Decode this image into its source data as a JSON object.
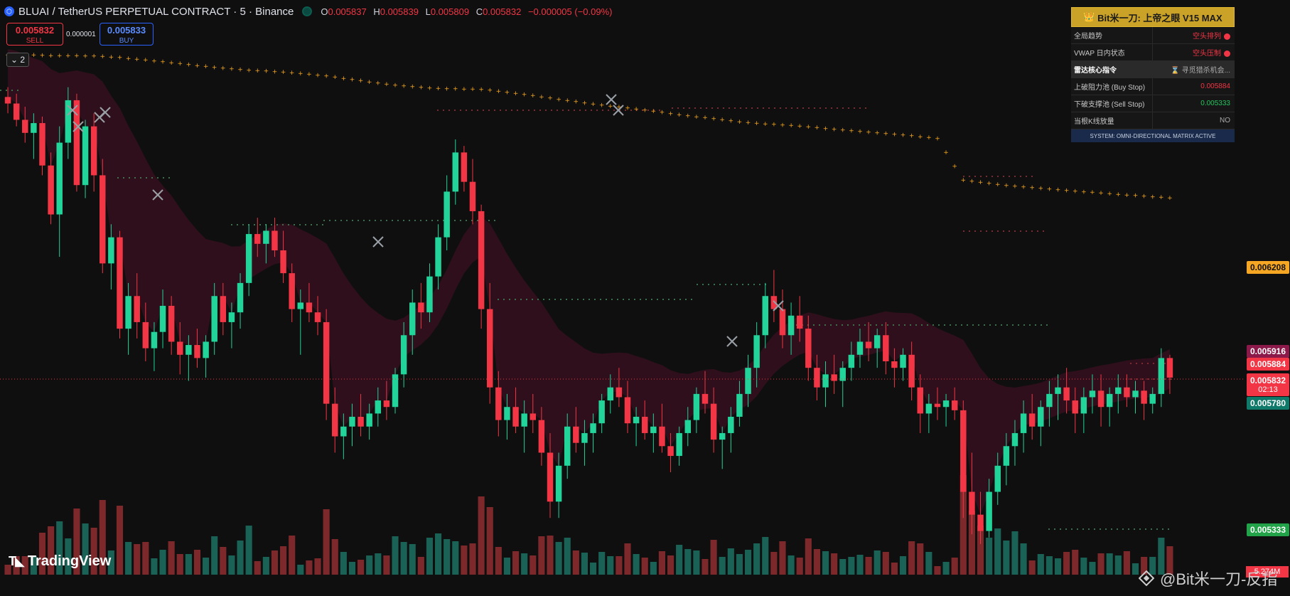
{
  "header": {
    "exchange_icon": "binance-logo-icon",
    "title": "BLUAI / TetherUS PERPETUAL CONTRACT · 5 · Binance",
    "ohlc": [
      {
        "key": "O",
        "value": "0.005837"
      },
      {
        "key": "H",
        "value": "0.005839"
      },
      {
        "key": "L",
        "value": "0.005809"
      },
      {
        "key": "C",
        "value": "0.005832"
      }
    ],
    "change": "−0.000005 (−0.09%)"
  },
  "trade": {
    "sell_price": "0.005832",
    "sell_label": "SELL",
    "spread": "0.000001",
    "buy_price": "0.005833",
    "buy_label": "BUY"
  },
  "indicator_collapse": {
    "count": "2"
  },
  "panel": {
    "title": "Bit米一刀: 上帝之眼 V15 MAX",
    "rows": [
      {
        "label": "全局趋势",
        "value": "空头排列"
      },
      {
        "label": "VWAP 日内状态",
        "value": "空头压制"
      },
      {
        "label": "雷达核心指令",
        "value": "⌛ 寻觅猎杀机会..."
      },
      {
        "label": "上破阻力池 (Buy Stop)",
        "value": "0.005884"
      },
      {
        "label": "下破支撑池 (Sell Stop)",
        "value": "0.005333"
      },
      {
        "label": "当根K线放量",
        "value": "NO"
      }
    ],
    "footer": "SYSTEM: OMNI-DIRECTIONAL MATRIX ACTIVE"
  },
  "price_tags": {
    "p1": "0.006208",
    "p2": "0.005916",
    "p3": "0.005884",
    "p4": "0.005832",
    "countdown": "02:13",
    "p5": "0.005780",
    "p6": "0.005333",
    "volume": "5.274M"
  },
  "branding": {
    "tradingview": "TradingView",
    "watermark": "@Bit米一刀-反指"
  },
  "colors": {
    "bull": "#22d39a",
    "bear": "#f23645",
    "dots": "#f5a623",
    "cloud": "#3a1020",
    "panel_gold": "#c9a227"
  },
  "chart_data": {
    "type": "candlestick",
    "symbol": "BLUAI/USDT",
    "interval": "5",
    "y_range": [
      0.0052,
      0.0069
    ],
    "candles": [
      [
        0.00669,
        0.00672,
        0.00664,
        0.00667
      ],
      [
        0.00667,
        0.0067,
        0.0066,
        0.00662
      ],
      [
        0.00662,
        0.00666,
        0.00655,
        0.00658
      ],
      [
        0.00658,
        0.00664,
        0.0065,
        0.00661
      ],
      [
        0.00661,
        0.00663,
        0.00645,
        0.00648
      ],
      [
        0.00648,
        0.00652,
        0.0063,
        0.00633
      ],
      [
        0.00633,
        0.0066,
        0.0062,
        0.00655
      ],
      [
        0.00655,
        0.00672,
        0.0065,
        0.00668
      ],
      [
        0.00668,
        0.0067,
        0.0064,
        0.00642
      ],
      [
        0.00642,
        0.00662,
        0.00638,
        0.0066
      ],
      [
        0.0066,
        0.00664,
        0.0064,
        0.00645
      ],
      [
        0.00645,
        0.0065,
        0.00615,
        0.00618
      ],
      [
        0.00618,
        0.0063,
        0.0061,
        0.00626
      ],
      [
        0.00626,
        0.00628,
        0.00595,
        0.00598
      ],
      [
        0.00598,
        0.00612,
        0.0059,
        0.00608
      ],
      [
        0.00608,
        0.00615,
        0.00595,
        0.006
      ],
      [
        0.006,
        0.00606,
        0.00588,
        0.00592
      ],
      [
        0.00592,
        0.006,
        0.00585,
        0.00597
      ],
      [
        0.00597,
        0.0061,
        0.00592,
        0.00605
      ],
      [
        0.00605,
        0.00608,
        0.0059,
        0.00594
      ],
      [
        0.00594,
        0.006,
        0.00584,
        0.0059
      ],
      [
        0.0059,
        0.00596,
        0.00582,
        0.00593
      ],
      [
        0.00593,
        0.00598,
        0.00586,
        0.00589
      ],
      [
        0.00589,
        0.00596,
        0.00583,
        0.00594
      ],
      [
        0.00594,
        0.00612,
        0.0059,
        0.00608
      ],
      [
        0.00608,
        0.00612,
        0.00596,
        0.006
      ],
      [
        0.006,
        0.00606,
        0.00592,
        0.00603
      ],
      [
        0.00603,
        0.00615,
        0.00598,
        0.00612
      ],
      [
        0.00612,
        0.0063,
        0.00608,
        0.00627
      ],
      [
        0.00627,
        0.00632,
        0.0062,
        0.00624
      ],
      [
        0.00624,
        0.0063,
        0.00618,
        0.00628
      ],
      [
        0.00628,
        0.00632,
        0.0062,
        0.00622
      ],
      [
        0.00622,
        0.00628,
        0.00612,
        0.00615
      ],
      [
        0.00615,
        0.00618,
        0.006,
        0.00604
      ],
      [
        0.00604,
        0.0061,
        0.0059,
        0.00606
      ],
      [
        0.00606,
        0.00612,
        0.006,
        0.00603
      ],
      [
        0.00603,
        0.00608,
        0.00596,
        0.006
      ],
      [
        0.006,
        0.00604,
        0.0057,
        0.00575
      ],
      [
        0.00575,
        0.0058,
        0.0056,
        0.00565
      ],
      [
        0.00565,
        0.00572,
        0.00558,
        0.00568
      ],
      [
        0.00568,
        0.00575,
        0.00562,
        0.00571
      ],
      [
        0.00571,
        0.00578,
        0.00565,
        0.00568
      ],
      [
        0.00568,
        0.00575,
        0.00564,
        0.00572
      ],
      [
        0.00572,
        0.0058,
        0.00568,
        0.00576
      ],
      [
        0.00576,
        0.00582,
        0.0057,
        0.00574
      ],
      [
        0.00574,
        0.00586,
        0.00572,
        0.00584
      ],
      [
        0.00584,
        0.006,
        0.0058,
        0.00596
      ],
      [
        0.00596,
        0.0061,
        0.0059,
        0.00606
      ],
      [
        0.00606,
        0.00612,
        0.00598,
        0.00603
      ],
      [
        0.00603,
        0.00618,
        0.006,
        0.00614
      ],
      [
        0.00614,
        0.0063,
        0.0061,
        0.00626
      ],
      [
        0.00626,
        0.00645,
        0.00622,
        0.0064
      ],
      [
        0.0064,
        0.00656,
        0.00636,
        0.00652
      ],
      [
        0.00652,
        0.00654,
        0.0064,
        0.00643
      ],
      [
        0.00643,
        0.0065,
        0.0063,
        0.00634
      ],
      [
        0.00634,
        0.00636,
        0.00598,
        0.00604
      ],
      [
        0.00604,
        0.00612,
        0.00575,
        0.0058
      ],
      [
        0.0058,
        0.00585,
        0.00565,
        0.0057
      ],
      [
        0.0057,
        0.00578,
        0.00564,
        0.00574
      ],
      [
        0.00574,
        0.0058,
        0.00566,
        0.00568
      ],
      [
        0.00568,
        0.00576,
        0.0056,
        0.00572
      ],
      [
        0.00572,
        0.00578,
        0.00566,
        0.0057
      ],
      [
        0.0057,
        0.00574,
        0.00556,
        0.0056
      ],
      [
        0.0056,
        0.00566,
        0.0054,
        0.00545
      ],
      [
        0.00545,
        0.0056,
        0.0054,
        0.00556
      ],
      [
        0.00556,
        0.00572,
        0.00552,
        0.00568
      ],
      [
        0.00568,
        0.00574,
        0.0056,
        0.00563
      ],
      [
        0.00563,
        0.0057,
        0.00556,
        0.00566
      ],
      [
        0.00566,
        0.00572,
        0.0056,
        0.00569
      ],
      [
        0.00569,
        0.00578,
        0.00566,
        0.00576
      ],
      [
        0.00576,
        0.00584,
        0.00572,
        0.0058
      ],
      [
        0.0058,
        0.00586,
        0.00574,
        0.00577
      ],
      [
        0.00577,
        0.00582,
        0.00566,
        0.00569
      ],
      [
        0.00569,
        0.00574,
        0.00562,
        0.00571
      ],
      [
        0.00571,
        0.00576,
        0.00564,
        0.00566
      ],
      [
        0.00566,
        0.00572,
        0.0056,
        0.00568
      ],
      [
        0.00568,
        0.00575,
        0.0056,
        0.00562
      ],
      [
        0.00562,
        0.00566,
        0.00554,
        0.00559
      ],
      [
        0.00559,
        0.00568,
        0.00556,
        0.00566
      ],
      [
        0.00566,
        0.00574,
        0.00562,
        0.0057
      ],
      [
        0.0057,
        0.0058,
        0.00566,
        0.00578
      ],
      [
        0.00578,
        0.00585,
        0.00572,
        0.00575
      ],
      [
        0.00575,
        0.0058,
        0.0056,
        0.00564
      ],
      [
        0.00564,
        0.00568,
        0.00555,
        0.00566
      ],
      [
        0.00566,
        0.00574,
        0.0056,
        0.00571
      ],
      [
        0.00571,
        0.00582,
        0.00568,
        0.00578
      ],
      [
        0.00578,
        0.0059,
        0.00574,
        0.00586
      ],
      [
        0.00586,
        0.006,
        0.0058,
        0.00596
      ],
      [
        0.00596,
        0.00612,
        0.00592,
        0.00608
      ],
      [
        0.00608,
        0.00616,
        0.006,
        0.00604
      ],
      [
        0.00604,
        0.0061,
        0.00592,
        0.00596
      ],
      [
        0.00596,
        0.00606,
        0.0059,
        0.00602
      ],
      [
        0.00602,
        0.00608,
        0.00594,
        0.00598
      ],
      [
        0.00598,
        0.00602,
        0.00582,
        0.00586
      ],
      [
        0.00586,
        0.0059,
        0.00576,
        0.0058
      ],
      [
        0.0058,
        0.00588,
        0.00574,
        0.00584
      ],
      [
        0.00584,
        0.0059,
        0.00578,
        0.00582
      ],
      [
        0.00582,
        0.00588,
        0.00574,
        0.00586
      ],
      [
        0.00586,
        0.00594,
        0.00582,
        0.0059
      ],
      [
        0.0059,
        0.00598,
        0.00586,
        0.00594
      ],
      [
        0.00594,
        0.006,
        0.00588,
        0.00592
      ],
      [
        0.00592,
        0.00598,
        0.00586,
        0.00596
      ],
      [
        0.00596,
        0.006,
        0.00584,
        0.00588
      ],
      [
        0.00588,
        0.00592,
        0.0058,
        0.00586
      ],
      [
        0.00586,
        0.00592,
        0.00582,
        0.0059
      ],
      [
        0.0059,
        0.00594,
        0.00576,
        0.0058
      ],
      [
        0.0058,
        0.00584,
        0.00566,
        0.00572
      ],
      [
        0.00572,
        0.00578,
        0.00566,
        0.00575
      ],
      [
        0.00575,
        0.0058,
        0.0057,
        0.00574
      ],
      [
        0.00574,
        0.00578,
        0.00568,
        0.00576
      ],
      [
        0.00576,
        0.0058,
        0.0057,
        0.00573
      ],
      [
        0.00573,
        0.00576,
        0.0054,
        0.00548
      ],
      [
        0.00548,
        0.0056,
        0.00535,
        0.00541
      ],
      [
        0.00541,
        0.00548,
        0.00532,
        0.00536
      ],
      [
        0.00536,
        0.00552,
        0.00534,
        0.00548
      ],
      [
        0.00548,
        0.0056,
        0.00544,
        0.00556
      ],
      [
        0.00556,
        0.00566,
        0.0055,
        0.00562
      ],
      [
        0.00562,
        0.0057,
        0.00556,
        0.00566
      ],
      [
        0.00566,
        0.00576,
        0.0056,
        0.00572
      ],
      [
        0.00572,
        0.00578,
        0.00564,
        0.00568
      ],
      [
        0.00568,
        0.00576,
        0.00562,
        0.00574
      ],
      [
        0.00574,
        0.00582,
        0.00568,
        0.00578
      ],
      [
        0.00578,
        0.00584,
        0.0057,
        0.0058
      ],
      [
        0.0058,
        0.00586,
        0.00572,
        0.00576
      ],
      [
        0.00576,
        0.0058,
        0.00566,
        0.00572
      ],
      [
        0.00572,
        0.0058,
        0.00566,
        0.00577
      ],
      [
        0.00577,
        0.00584,
        0.00572,
        0.00579
      ],
      [
        0.00579,
        0.00584,
        0.00568,
        0.00574
      ],
      [
        0.00574,
        0.0058,
        0.00568,
        0.00578
      ],
      [
        0.00578,
        0.00584,
        0.00572,
        0.0058
      ],
      [
        0.0058,
        0.00584,
        0.00574,
        0.00577
      ],
      [
        0.00577,
        0.00582,
        0.00572,
        0.00579
      ],
      [
        0.00579,
        0.00582,
        0.0057,
        0.00575
      ],
      [
        0.00575,
        0.0058,
        0.00572,
        0.00578
      ],
      [
        0.00578,
        0.00592,
        0.00574,
        0.00589
      ],
      [
        0.00589,
        0.0059,
        0.00578,
        0.00583
      ]
    ],
    "dots_series": "supertrend-style dotted resistance line",
    "annotations": [
      "x-markers on swing highs/lows",
      "dotted liquidity levels"
    ]
  }
}
